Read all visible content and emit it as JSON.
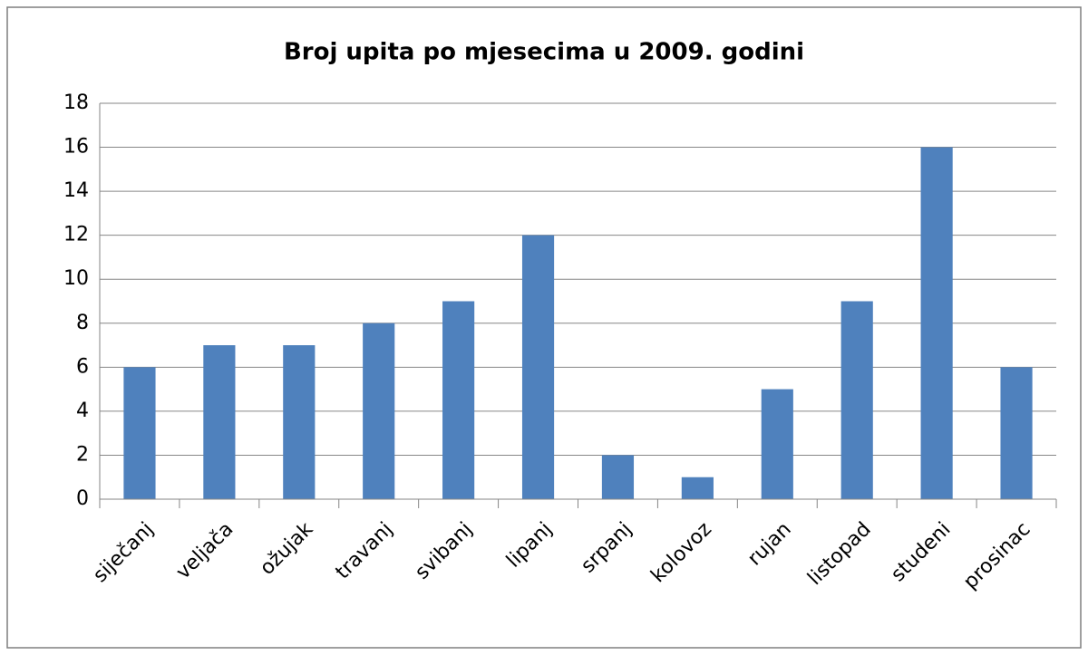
{
  "chart_data": {
    "type": "bar",
    "title": "Broj upita po mjesecima u 2009. godini",
    "categories": [
      "siječanj",
      "veljača",
      "ožujak",
      "travanj",
      "svibanj",
      "lipanj",
      "srpanj",
      "kolovoz",
      "rujan",
      "listopad",
      "studeni",
      "prosinac"
    ],
    "values": [
      6,
      7,
      7,
      8,
      9,
      12,
      2,
      1,
      5,
      9,
      16,
      6
    ],
    "color": "#4f81bd",
    "ylim": [
      0,
      18
    ],
    "yticks": [
      0,
      2,
      4,
      6,
      8,
      10,
      12,
      14,
      16,
      18
    ],
    "grid": true
  }
}
